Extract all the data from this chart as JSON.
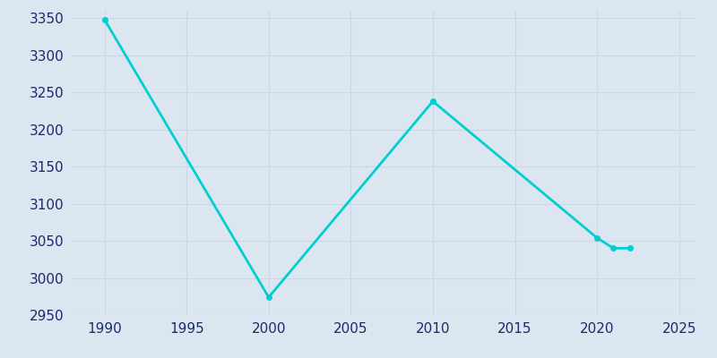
{
  "years": [
    1990,
    2000,
    2010,
    2020,
    2021,
    2022
  ],
  "population": [
    3348,
    2974,
    3238,
    3054,
    3040,
    3040
  ],
  "line_color": "#00CED1",
  "marker_color": "#00CED1",
  "background_color": "#dce6f0",
  "plot_background_color": "#dce6f0",
  "grid_color": "#c8d8e8",
  "text_color": "#1a2a6c",
  "ylim": [
    2950,
    3360
  ],
  "xlim": [
    1988,
    2026
  ],
  "xticks": [
    1990,
    1995,
    2000,
    2005,
    2010,
    2015,
    2020,
    2025
  ],
  "yticks": [
    2950,
    3000,
    3050,
    3100,
    3150,
    3200,
    3250,
    3300,
    3350
  ],
  "linewidth": 2.0,
  "markersize": 4
}
